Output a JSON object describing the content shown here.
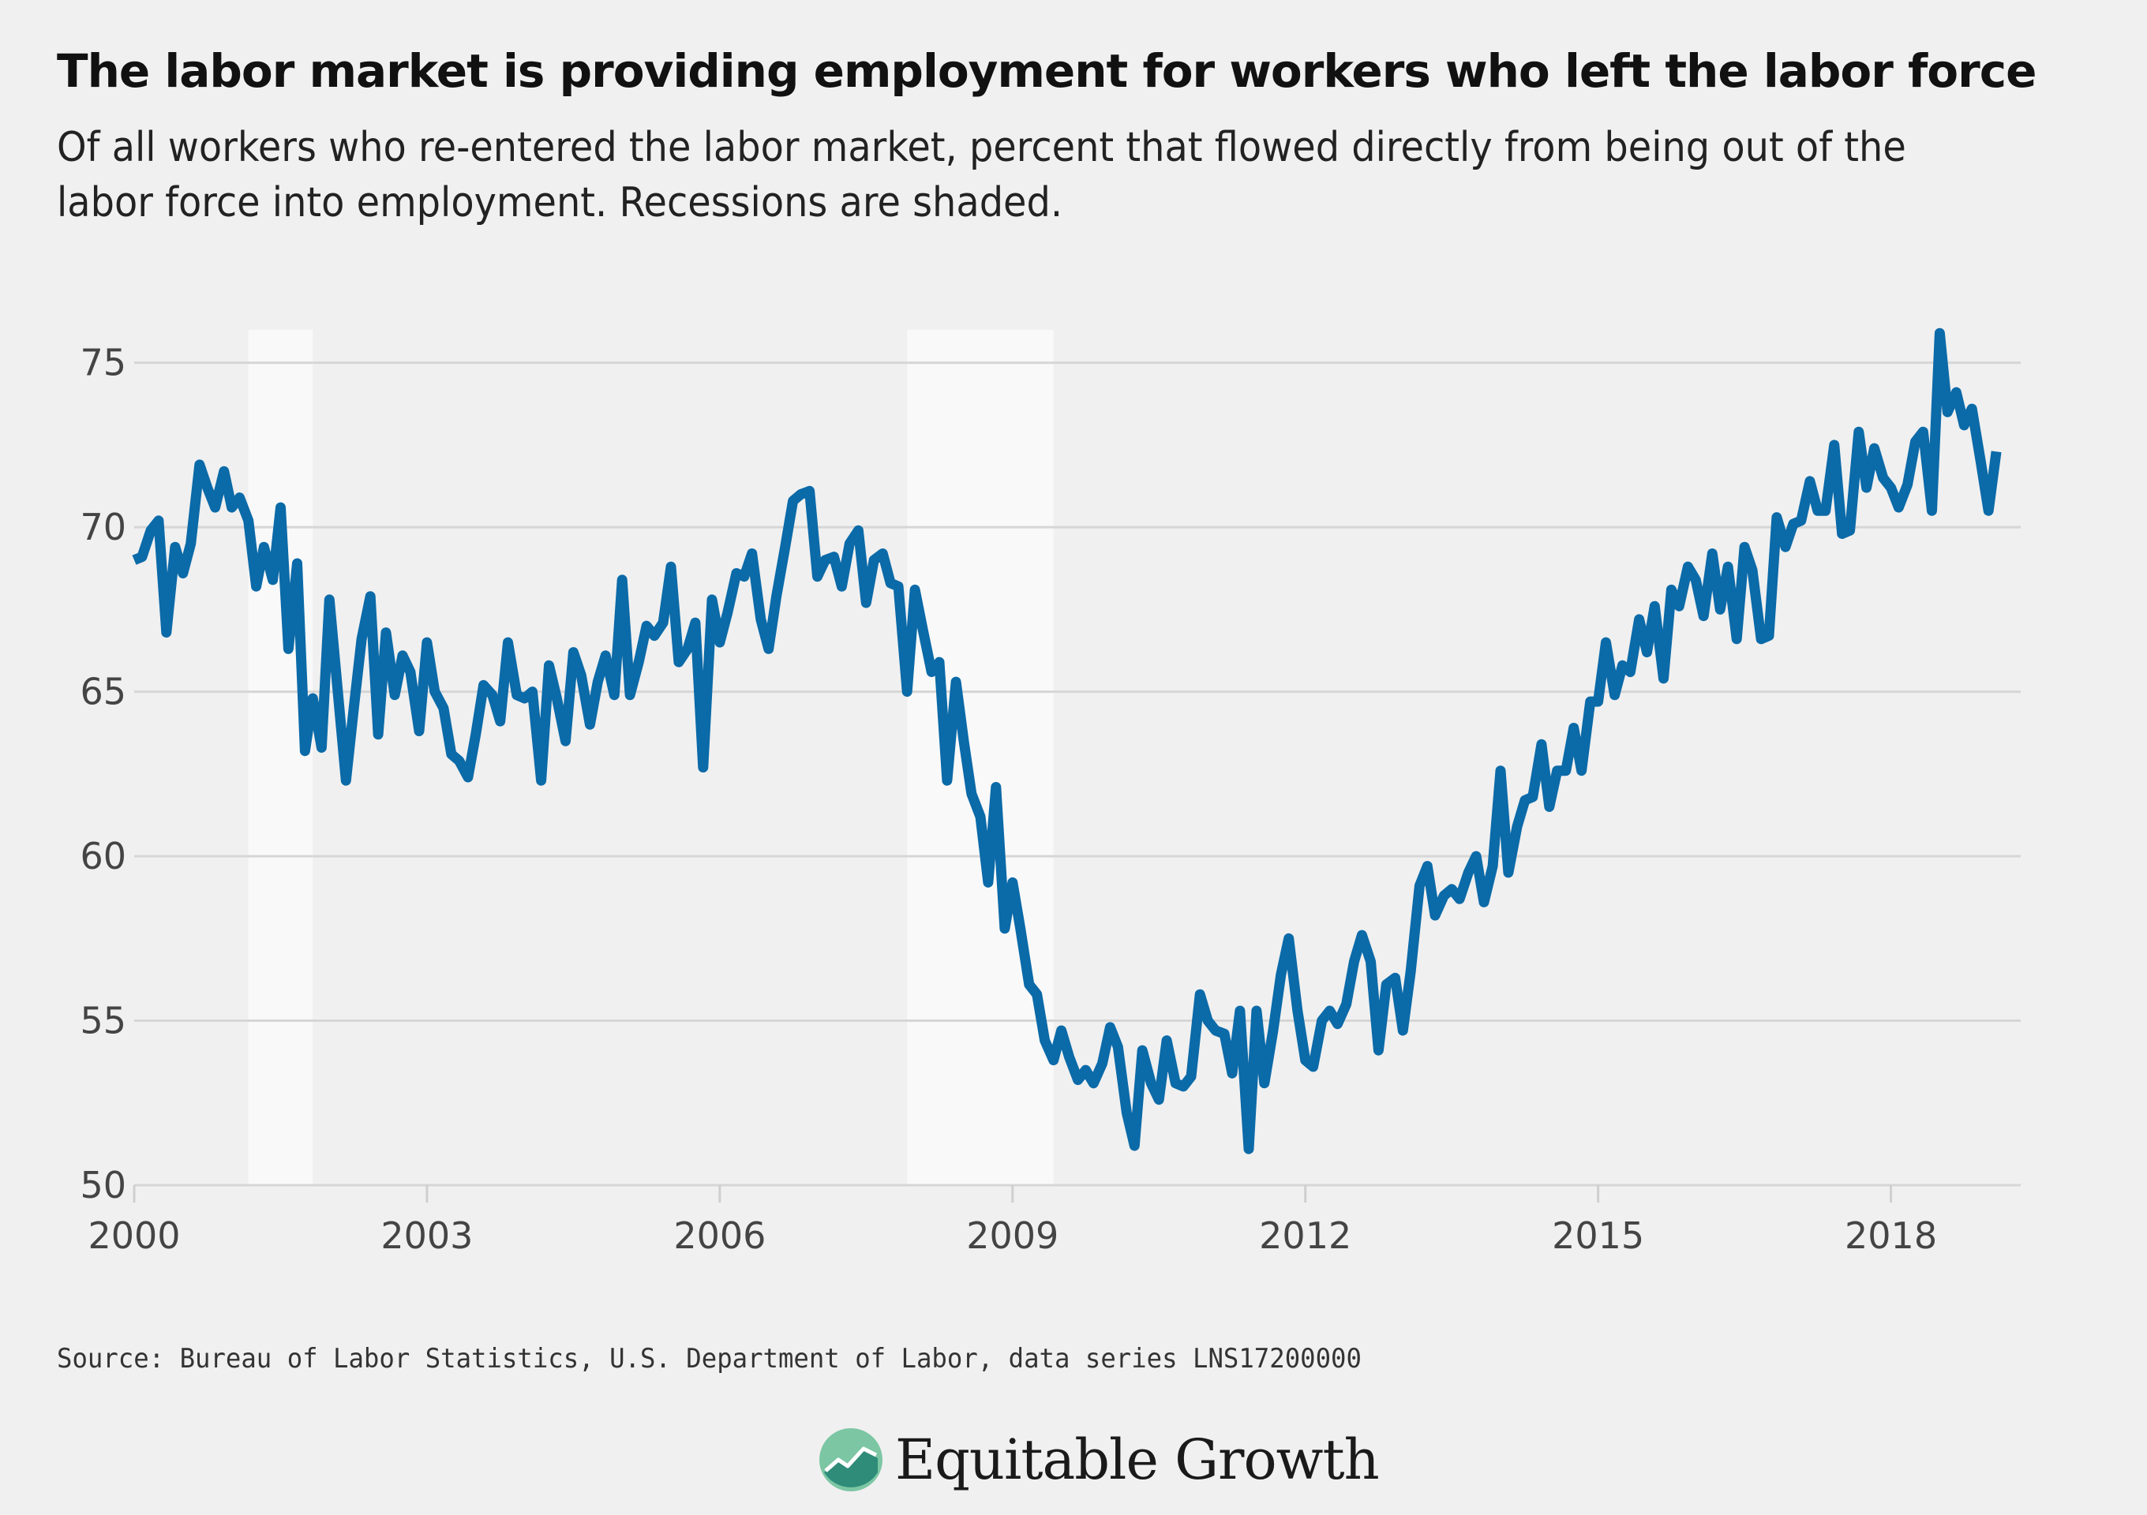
{
  "header": {
    "title": "The labor market is providing employment for workers who left the labor force",
    "subtitle": "Of all workers who re-entered the labor market, percent that flowed directly from being out of the labor force into employment. Recessions are shaded."
  },
  "footer": {
    "source": "Source: Bureau of Labor Statistics, U.S. Department of Labor, data series LNS17200000",
    "brand": "Equitable Growth"
  },
  "colors": {
    "line": "#0b6aa8",
    "grid": "#d6d6d6",
    "recession": "#f9f9f9",
    "logo_green": "#7cc6a4",
    "logo_teal": "#2e8c79"
  },
  "chart_data": {
    "type": "line",
    "title": "The labor market is providing employment for workers who left the labor force",
    "xlabel": "",
    "ylabel": "",
    "xlim": [
      2000,
      2019.33
    ],
    "ylim": [
      50,
      76
    ],
    "y_ticks": [
      50,
      55,
      60,
      65,
      70,
      75
    ],
    "x_ticks": [
      2000,
      2003,
      2006,
      2009,
      2012,
      2015,
      2018
    ],
    "x_tick_labels": [
      "2000",
      "2003",
      "2006",
      "2009",
      "2012",
      "2015",
      "2018"
    ],
    "grid": "horizontal",
    "legend": "none",
    "recessions": [
      [
        2001.17,
        2001.83
      ],
      [
        2007.92,
        2009.42
      ]
    ],
    "series": [
      {
        "x": [
          2000.0,
          2000.08,
          2000.17,
          2000.25,
          2000.33,
          2000.42,
          2000.5,
          2000.58,
          2000.67,
          2000.75,
          2000.83,
          2000.92,
          2001.0,
          2001.08,
          2001.17,
          2001.25,
          2001.33,
          2001.42,
          2001.5,
          2001.58,
          2001.67,
          2001.75,
          2001.83,
          2001.92,
          2002.0,
          2002.08,
          2002.17,
          2002.25,
          2002.33,
          2002.42,
          2002.5,
          2002.58,
          2002.67,
          2002.75,
          2002.83,
          2002.92,
          2003.0,
          2003.08,
          2003.17,
          2003.25,
          2003.33,
          2003.42,
          2003.5,
          2003.58,
          2003.67,
          2003.75,
          2003.83,
          2003.92,
          2004.0,
          2004.08,
          2004.17,
          2004.25,
          2004.33,
          2004.42,
          2004.5,
          2004.58,
          2004.67,
          2004.75,
          2004.83,
          2004.92,
          2005.0,
          2005.08,
          2005.17,
          2005.25,
          2005.33,
          2005.42,
          2005.5,
          2005.58,
          2005.67,
          2005.75,
          2005.83,
          2005.92,
          2006.0,
          2006.08,
          2006.17,
          2006.25,
          2006.33,
          2006.42,
          2006.5,
          2006.58,
          2006.67,
          2006.75,
          2006.83,
          2006.92,
          2007.0,
          2007.08,
          2007.17,
          2007.25,
          2007.33,
          2007.42,
          2007.5,
          2007.58,
          2007.67,
          2007.75,
          2007.83,
          2007.92,
          2008.0,
          2008.08,
          2008.17,
          2008.25,
          2008.33,
          2008.42,
          2008.5,
          2008.58,
          2008.67,
          2008.75,
          2008.83,
          2008.92,
          2009.0,
          2009.08,
          2009.17,
          2009.25,
          2009.33,
          2009.42,
          2009.5,
          2009.58,
          2009.67,
          2009.75,
          2009.83,
          2009.92,
          2010.0,
          2010.08,
          2010.17,
          2010.25,
          2010.33,
          2010.42,
          2010.5,
          2010.58,
          2010.67,
          2010.75,
          2010.83,
          2010.92,
          2011.0,
          2011.08,
          2011.17,
          2011.25,
          2011.33,
          2011.42,
          2011.5,
          2011.58,
          2011.67,
          2011.75,
          2011.83,
          2011.92,
          2012.0,
          2012.08,
          2012.17,
          2012.25,
          2012.33,
          2012.42,
          2012.5,
          2012.58,
          2012.67,
          2012.75,
          2012.83,
          2012.92,
          2013.0,
          2013.08,
          2013.17,
          2013.25,
          2013.33,
          2013.42,
          2013.5,
          2013.58,
          2013.67,
          2013.75,
          2013.83,
          2013.92,
          2014.0,
          2014.08,
          2014.17,
          2014.25,
          2014.33,
          2014.42,
          2014.5,
          2014.58,
          2014.67,
          2014.75,
          2014.83,
          2014.92,
          2015.0,
          2015.08,
          2015.17,
          2015.25,
          2015.33,
          2015.42,
          2015.5,
          2015.58,
          2015.67,
          2015.75,
          2015.83,
          2015.92,
          2016.0,
          2016.08,
          2016.17,
          2016.25,
          2016.33,
          2016.42,
          2016.5,
          2016.58,
          2016.67,
          2016.75,
          2016.83,
          2016.92,
          2017.0,
          2017.08,
          2017.17,
          2017.25,
          2017.33,
          2017.42,
          2017.5,
          2017.58,
          2017.67,
          2017.75,
          2017.83,
          2017.92,
          2018.0,
          2018.08,
          2018.17,
          2018.25,
          2018.33,
          2018.42,
          2018.5,
          2018.58,
          2018.67,
          2018.75,
          2018.83,
          2018.92,
          2019.0,
          2019.08
        ],
        "values": [
          69.0,
          69.1,
          69.9,
          70.2,
          66.8,
          69.4,
          68.6,
          69.5,
          71.9,
          71.2,
          70.6,
          71.7,
          70.6,
          70.9,
          70.2,
          68.2,
          69.4,
          68.4,
          70.6,
          66.3,
          68.9,
          63.2,
          64.8,
          63.3,
          67.8,
          65.2,
          62.3,
          64.5,
          66.6,
          67.9,
          63.7,
          66.8,
          64.9,
          66.1,
          65.6,
          63.8,
          66.5,
          65.0,
          64.5,
          63.1,
          62.9,
          62.4,
          63.7,
          65.2,
          64.9,
          64.1,
          66.5,
          64.9,
          64.8,
          65.0,
          62.3,
          65.8,
          64.8,
          63.5,
          66.2,
          65.5,
          64.0,
          65.3,
          66.1,
          64.9,
          68.4,
          64.9,
          65.9,
          67.0,
          66.7,
          67.1,
          68.8,
          65.9,
          66.3,
          67.1,
          62.7,
          67.8,
          66.5,
          67.4,
          68.6,
          68.5,
          69.2,
          67.2,
          66.3,
          67.9,
          69.4,
          70.8,
          71.0,
          71.1,
          68.5,
          69.0,
          69.1,
          68.2,
          69.5,
          69.9,
          67.7,
          69.0,
          69.2,
          68.3,
          68.2,
          65.0,
          68.1,
          66.9,
          65.6,
          65.9,
          62.3,
          65.3,
          63.5,
          61.9,
          61.2,
          59.2,
          62.1,
          57.8,
          59.2,
          57.8,
          56.1,
          55.8,
          54.4,
          53.8,
          54.7,
          53.9,
          53.2,
          53.5,
          53.1,
          53.7,
          54.8,
          54.2,
          52.2,
          51.2,
          54.1,
          53.1,
          52.6,
          54.4,
          53.1,
          53.0,
          53.3,
          55.8,
          55.0,
          54.7,
          54.6,
          53.4,
          55.3,
          51.1,
          55.3,
          53.1,
          54.7,
          56.4,
          57.5,
          55.3,
          53.8,
          53.6,
          55.0,
          55.3,
          54.9,
          55.5,
          56.8,
          57.6,
          56.8,
          54.1,
          56.1,
          56.3,
          54.7,
          56.5,
          59.1,
          59.7,
          58.2,
          58.8,
          59.0,
          58.7,
          59.5,
          60.0,
          58.6,
          59.7,
          62.6,
          59.5,
          60.9,
          61.7,
          61.8,
          63.4,
          61.5,
          62.6,
          62.6,
          63.9,
          62.6,
          64.7,
          64.7,
          66.5,
          64.9,
          65.8,
          65.6,
          67.2,
          66.2,
          67.6,
          65.4,
          68.1,
          67.6,
          68.8,
          68.4,
          67.3,
          69.2,
          67.5,
          68.8,
          66.6,
          69.4,
          68.7,
          66.6,
          66.7,
          70.3,
          69.4,
          70.1,
          70.2,
          71.4,
          70.5,
          70.5,
          72.5,
          69.8,
          69.9,
          72.9,
          71.2,
          72.4,
          71.5,
          71.2,
          70.6,
          71.3,
          72.6,
          72.9,
          70.5,
          75.9,
          73.5,
          74.1,
          73.1,
          73.6,
          72.0,
          70.5,
          72.3
        ]
      }
    ]
  }
}
